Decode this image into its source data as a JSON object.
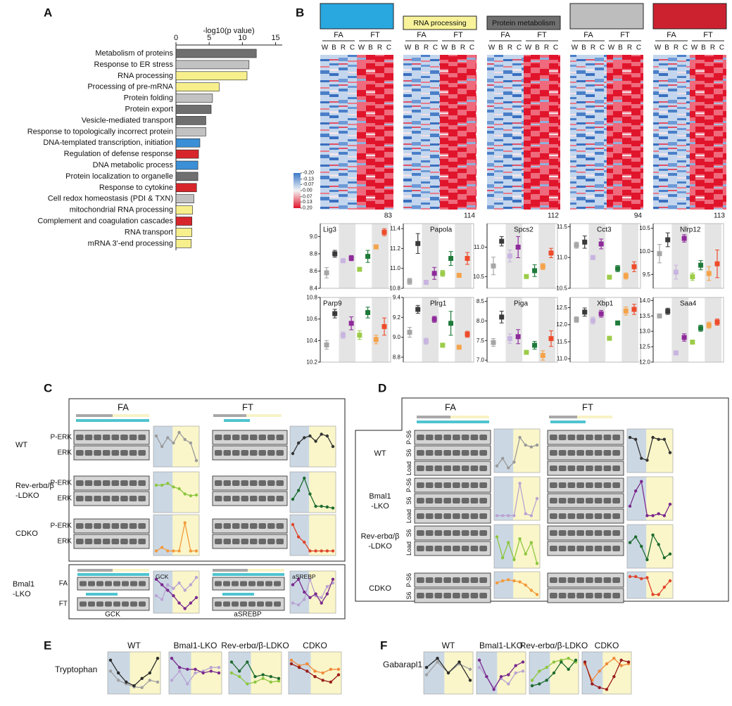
{
  "panel_labels": [
    "A",
    "B",
    "C",
    "D",
    "E",
    "F"
  ],
  "chart_data": {
    "type": "bar",
    "orientation": "horizontal",
    "xlabel": "-log10(p value)",
    "categories": [
      "Metabolism of proteins",
      "Response to ER stress",
      "RNA processing",
      "Processing of pre-mRNA",
      "Protein folding",
      "Protein export",
      "Vesicle-mediated transport",
      "Response to topologically incorrect protein",
      "DNA-templated transcription, initiation",
      "Regulation of defense response",
      "DNA metabolic process",
      "Protein localization to organelle",
      "Response to cytokine",
      "Cell redox homeostasis (PDI & TXN)",
      "mitochondrial RNA processing",
      "Complement and coagulation cascades",
      "RNA transport",
      "mRNA 3'-end processing"
    ],
    "values": [
      12.1,
      11,
      10.7,
      6.5,
      5.5,
      5.3,
      4.5,
      4.5,
      3.6,
      3.4,
      3.3,
      3.3,
      3.1,
      2.7,
      2.5,
      2.4,
      2.4,
      2.3
    ],
    "colors": [
      "#6f6f6f",
      "#c2c2c2",
      "#f6ef8c",
      "#f6ef8c",
      "#c2c2c2",
      "#6f6f6f",
      "#6f6f6f",
      "#c2c2c2",
      "#3b8fd6",
      "#d7262b",
      "#3b8fd6",
      "#6f6f6f",
      "#d7262b",
      "#c2c2c2",
      "#f6ef8c",
      "#d7262b",
      "#f6ef8c",
      "#f6ef8c"
    ],
    "xlim": [
      0,
      16
    ],
    "xticks": [
      0,
      5,
      10,
      15
    ]
  },
  "heatmaps": {
    "groups": [
      "FA",
      "FT"
    ],
    "timepoints": [
      "W",
      "B",
      "R",
      "C"
    ],
    "legend_ticks": [
      {
        "value": -0.2,
        "label": "-0.20"
      },
      {
        "value": -0.13,
        "label": "-0.13"
      },
      {
        "value": -0.07,
        "label": "-0.07"
      },
      {
        "value": 0,
        "label": "0.00"
      },
      {
        "value": 0.07,
        "label": "0.07"
      },
      {
        "value": 0.13,
        "label": "0.13"
      },
      {
        "value": 0.2,
        "label": "0.20"
      }
    ],
    "modules": [
      {
        "color": "#29a8e0",
        "count": 83
      },
      {
        "label": "RNA processing",
        "color": "#f8f39a",
        "count": 114
      },
      {
        "label": "Protein metabolism",
        "color": "#6f6f6f",
        "count": 112
      },
      {
        "color": "#bdbdbd",
        "count": 94
      },
      {
        "color": "#cc2230",
        "count": 113
      }
    ]
  },
  "dot_colors": [
    "#a6a6a6",
    "#3a3a3a",
    "#c8b4e0",
    "#8e2a9a",
    "#9ccc4a",
    "#1f7a3a",
    "#f5a34a",
    "#ee4b2b"
  ],
  "dot_plots": [
    {
      "gene": "Lig3",
      "ylim": [
        8.4,
        9.15
      ],
      "yticks": [
        8.4,
        8.6,
        8.8,
        {
          "value": 9,
          "label": "9.0"
        }
      ],
      "values": [
        8.58,
        8.8,
        8.72,
        8.75,
        8.62,
        8.77,
        8.88,
        9.05
      ],
      "errors": [
        0.06,
        0.04,
        0.02,
        0.03,
        0.02,
        0.07,
        0.02,
        0.04
      ]
    },
    {
      "gene": "Papola",
      "ylim": [
        10.8,
        11.45
      ],
      "yticks": [
        10.8,
        {
          "value": 11,
          "label": "11.0"
        },
        11.2,
        11.4
      ],
      "values": [
        10.87,
        11.25,
        10.86,
        10.95,
        10.95,
        11.1,
        10.93,
        11.1
      ],
      "errors": [
        0.03,
        0.1,
        0.02,
        0.06,
        0.03,
        0.07,
        0.02,
        0.06
      ]
    },
    {
      "gene": "Spcs2",
      "ylim": [
        10.3,
        11.4
      ],
      "yticks": [
        10.5,
        {
          "value": 11,
          "label": "11.0"
        }
      ],
      "values": [
        10.68,
        11.1,
        10.85,
        11,
        10.5,
        10.6,
        10.67,
        10.9
      ],
      "errors": [
        0.15,
        0.08,
        0.1,
        0.18,
        0.02,
        0.1,
        0.05,
        0.08
      ]
    },
    {
      "gene": "Cct3",
      "ylim": [
        10.5,
        11.55
      ],
      "yticks": [
        10.5,
        {
          "value": 11,
          "label": "11.0"
        },
        11.5
      ],
      "values": [
        11.2,
        11.25,
        11,
        11.22,
        10.68,
        10.82,
        10.7,
        10.85
      ],
      "errors": [
        0.05,
        0.1,
        0.03,
        0.08,
        0.02,
        0.05,
        0.05,
        0.08
      ]
    },
    {
      "gene": "Nlrp12",
      "ylim": [
        9.2,
        10.6
      ],
      "yticks": [
        9.5,
        {
          "value": 10,
          "label": "10.0"
        },
        10.5
      ],
      "values": [
        9.95,
        10.25,
        9.55,
        10.28,
        9.45,
        9.7,
        9.52,
        9.73
      ],
      "errors": [
        0.2,
        0.15,
        0.15,
        0.08,
        0.08,
        0.1,
        0.15,
        0.3
      ]
    },
    {
      "gene": "Parp9",
      "ylim": [
        10.2,
        10.8
      ],
      "yticks": [
        10.2,
        10.4,
        10.6,
        10.8
      ],
      "values": [
        10.36,
        10.65,
        10.45,
        10.56,
        10.45,
        10.66,
        10.41,
        10.53
      ],
      "errors": [
        0.04,
        0.04,
        0.03,
        0.06,
        0.04,
        0.05,
        0.04,
        0.08
      ]
    },
    {
      "gene": "Plrg1",
      "ylim": [
        8.75,
        9.4
      ],
      "yticks": [
        8.8,
        {
          "value": 9,
          "label": "9.0"
        },
        9.2,
        9.4
      ],
      "values": [
        9.05,
        9.28,
        8.96,
        9.18,
        8.92,
        9.14,
        8.9,
        9.03
      ],
      "errors": [
        0.05,
        0.04,
        0.03,
        0.03,
        0.01,
        0.12,
        0.01,
        0.03
      ]
    },
    {
      "gene": "Piga",
      "ylim": [
        6.95,
        8.6
      ],
      "yticks": [
        {
          "value": 7,
          "label": "7.0"
        },
        7.5,
        {
          "value": 8,
          "label": "8.0"
        },
        8.5
      ],
      "values": [
        7.45,
        8.1,
        7.55,
        7.6,
        7.2,
        7.38,
        7.12,
        7.55
      ],
      "errors": [
        0.1,
        0.15,
        0.12,
        0.18,
        0.03,
        0.1,
        0.12,
        0.2
      ]
    },
    {
      "gene": "Xbp1",
      "ylim": [
        10.9,
        12.8
      ],
      "yticks": [
        {
          "value": 11,
          "label": "11.0"
        },
        11.5,
        {
          "value": 12,
          "label": "12.0"
        },
        12.5
      ],
      "values": [
        12.15,
        12.37,
        12.12,
        12.32,
        11.6,
        12.05,
        12.4,
        12.45
      ],
      "errors": [
        0.08,
        0.12,
        0.1,
        0.1,
        0.02,
        0.05,
        0.12,
        0.15
      ]
    },
    {
      "gene": "Saa4",
      "ylim": [
        12,
        14.1
      ],
      "yticks": [
        {
          "value": 12,
          "label": "12.0"
        },
        12.5,
        {
          "value": 13,
          "label": "13.0"
        },
        13.5,
        {
          "value": 14,
          "label": "14.0"
        }
      ],
      "values": [
        13.5,
        13.65,
        12.3,
        12.8,
        12.65,
        13.1,
        13.2,
        13.3
      ],
      "errors": [
        0.04,
        0.1,
        0.05,
        0.12,
        0.03,
        0.1,
        0.1,
        0.1
      ]
    }
  ],
  "panel_c": {
    "groups": [
      "FA",
      "FT"
    ],
    "rows": [
      {
        "name": [
          "WT"
        ],
        "blots": [
          "P-ERK",
          "ERK"
        ],
        "traces": [
          {
            "color": "#9a9a9a",
            "values": [
              0.8,
              0.5,
              0.75,
              0.6,
              0.9,
              0.7,
              0.6,
              0.1
            ]
          },
          {
            "color": "#333333",
            "values": [
              0.3,
              0.6,
              0.75,
              0.8,
              0.65,
              0.85,
              0.8,
              0.5
            ]
          }
        ]
      },
      {
        "name": [
          "Rev-erbα/β",
          "-LDKO"
        ],
        "blots": [
          "P-ERK",
          "ERK"
        ],
        "traces": [
          {
            "color": "#8dc63f",
            "values": [
              0.7,
              0.7,
              0.75,
              0.65,
              0.6,
              0.45,
              0.4,
              0.42
            ]
          },
          {
            "color": "#1e6b2f",
            "values": [
              0.3,
              0.55,
              0.9,
              0.45,
              0.1,
              0.1,
              0.08,
              0.05
            ]
          }
        ]
      },
      {
        "name": [
          "CDKO"
        ],
        "blots": [
          "P-ERK",
          "ERK"
        ],
        "traces": [
          {
            "color": "#f39a3b",
            "values": [
              0.05,
              0.15,
              0.05,
              0.05,
              0.05,
              0.85,
              0.05,
              0.05
            ]
          },
          {
            "color": "#e0452a",
            "values": [
              0.8,
              0.45,
              0.3,
              0.05,
              0.05,
              0.05,
              0.05,
              0.05
            ]
          }
        ]
      }
    ],
    "bmal1": {
      "name": [
        "Bmal1",
        "-LKO"
      ],
      "rows": [
        "FA",
        "FT"
      ],
      "proteins": [
        "GCK",
        "aSREBP"
      ],
      "traces": [
        [
          {
            "color": "#b9a3d3",
            "values": [
              0.4,
              0.3,
              0.7,
              0.6,
              0.75,
              0.55,
              0.7,
              0.9
            ]
          },
          {
            "color": "#7a2a8e",
            "values": [
              0.85,
              0.7,
              0.55,
              0.4,
              0.2,
              0.05,
              0.2,
              0.35
            ]
          }
        ],
        [
          {
            "color": "#b9a3d3",
            "values": [
              0.2,
              0.15,
              0.3,
              0.85,
              0.4,
              0.35,
              0.65,
              0.75
            ]
          },
          {
            "color": "#7a2a8e",
            "values": [
              0.7,
              0.85,
              0.5,
              0.35,
              0.45,
              0.2,
              0.45,
              0.85
            ]
          }
        ]
      ]
    }
  },
  "panel_d": {
    "groups": [
      "FA",
      "FT"
    ],
    "rows": [
      {
        "name": [
          "WT"
        ],
        "blots": [
          "P-S6",
          "S6",
          "Load"
        ],
        "traces": [
          {
            "color": "#9a9a9a",
            "values": [
              0.1,
              0.3,
              0.05,
              0.2,
              0.85,
              0.65,
              0.6,
              0.65
            ]
          },
          {
            "color": "#333333",
            "values": [
              0.85,
              0.8,
              0.3,
              0.25,
              0.85,
              0.8,
              0.8,
              0.45
            ]
          }
        ]
      },
      {
        "name": [
          "Bmal1",
          "-LKO"
        ],
        "blots": [
          "P-S6",
          "S6",
          "Load"
        ],
        "traces": [
          {
            "color": "#b9a3d3",
            "values": [
              0.05,
              0.05,
              0.05,
              0.05,
              0.9,
              0.1,
              0.05,
              0.5
            ]
          },
          {
            "color": "#7a2a8e",
            "values": [
              0.3,
              0.7,
              0.95,
              0.05,
              0.05,
              0.1,
              0.05,
              0.35
            ]
          }
        ]
      },
      {
        "name": [
          "Rev-erbα/β",
          "-LDKO"
        ],
        "blots": [
          "S6",
          "Load"
        ],
        "traces": [
          {
            "color": "#8dc63f",
            "values": [
              0.75,
              0.2,
              0.6,
              0.15,
              0.7,
              0.3,
              0.6,
              0.05
            ]
          },
          {
            "color": "#1e6b2f",
            "values": [
              0.6,
              0.75,
              0.5,
              0.15,
              0.8,
              0.55,
              0.2,
              0.3
            ]
          }
        ]
      },
      {
        "name": [
          "CDKO"
        ],
        "blots": [
          "P-S6",
          "S6"
        ],
        "traces": [
          {
            "color": "#f39a3b",
            "values": [
              0.6,
              0.7,
              0.75,
              0.7,
              0.65,
              0.5,
              0.25,
              0.05
            ]
          },
          {
            "color": "#e0452a",
            "values": [
              0.9,
              0.9,
              0.8,
              0.85,
              0.05,
              0.05,
              0.4,
              0.7
            ]
          }
        ]
      }
    ]
  },
  "panel_e": {
    "metabolite": "Tryptophan",
    "genotypes": [
      "WT",
      "Bmal1-LKO",
      "Rev-erbα/β-LDKO",
      "CDKO"
    ],
    "traces": [
      [
        {
          "color": "#a0a0a0",
          "values": [
            0.55,
            0.3,
            0.2,
            0.12,
            0.1,
            0.3,
            0.25
          ]
        },
        {
          "color": "#2b2b2b",
          "values": [
            0.85,
            0.5,
            0.25,
            0.15,
            0.35,
            0.5,
            0.9
          ]
        }
      ],
      [
        {
          "color": "#b9a3d3",
          "values": [
            0.3,
            0.55,
            0.2,
            0.5,
            0.55,
            0.65,
            0.65
          ]
        },
        {
          "color": "#7a2a8e",
          "values": [
            0.9,
            0.65,
            0.6,
            0.6,
            0.5,
            0.55,
            0.5
          ]
        }
      ],
      [
        {
          "color": "#8dc63f",
          "values": [
            0.5,
            0.4,
            0.2,
            0.25,
            0.35,
            0.25,
            0.28
          ]
        },
        {
          "color": "#1e6b2f",
          "values": [
            0.8,
            0.55,
            0.8,
            0.4,
            0.45,
            0.4,
            0.35
          ]
        }
      ],
      [
        {
          "color": "#f08a3a",
          "values": [
            0.85,
            0.7,
            0.75,
            0.55,
            0.5,
            0.6,
            0.6
          ]
        },
        {
          "color": "#9b1c1c",
          "values": [
            0.75,
            0.65,
            0.55,
            0.4,
            0.3,
            0.25,
            0.45
          ]
        }
      ]
    ]
  },
  "panel_f": {
    "gene": "Gabarapl1",
    "genotypes": [
      "WT",
      "Bmal1-LKO",
      "Rev-erbα/β-LDKO",
      "CDKO"
    ],
    "traces": [
      [
        {
          "color": "#a0a0a0",
          "values": [
            0.45,
            0.8,
            0.5,
            0.75,
            0.6
          ]
        },
        {
          "color": "#2b2b2b",
          "values": [
            0.65,
            0.9,
            0.5,
            0.8,
            0.3
          ]
        }
      ],
      [
        {
          "color": "#b9a3d3",
          "values": [
            0.65,
            0.4,
            0.1,
            0.35,
            0.2,
            0.5,
            0.55
          ]
        },
        {
          "color": "#7a2a8e",
          "values": [
            0.85,
            0.4,
            0.05,
            0.4,
            0.45,
            0.7,
            0.8
          ]
        }
      ],
      [
        {
          "color": "#8dc63f",
          "values": [
            0.3,
            0.55,
            0.65,
            0.8,
            0.85,
            0.9,
            0.8
          ]
        },
        {
          "color": "#1e6b2f",
          "values": [
            0.15,
            0.2,
            0.3,
            0.5,
            0.8,
            0.6,
            0.85
          ]
        }
      ],
      [
        {
          "color": "#f08a3a",
          "values": [
            0.75,
            0.3,
            0.55,
            0.75,
            0.9,
            0.7,
            0.75
          ]
        },
        {
          "color": "#9b1c1c",
          "values": [
            0.8,
            0.2,
            0.1,
            0.05,
            0.4,
            0.85,
            0.8
          ]
        }
      ]
    ]
  }
}
